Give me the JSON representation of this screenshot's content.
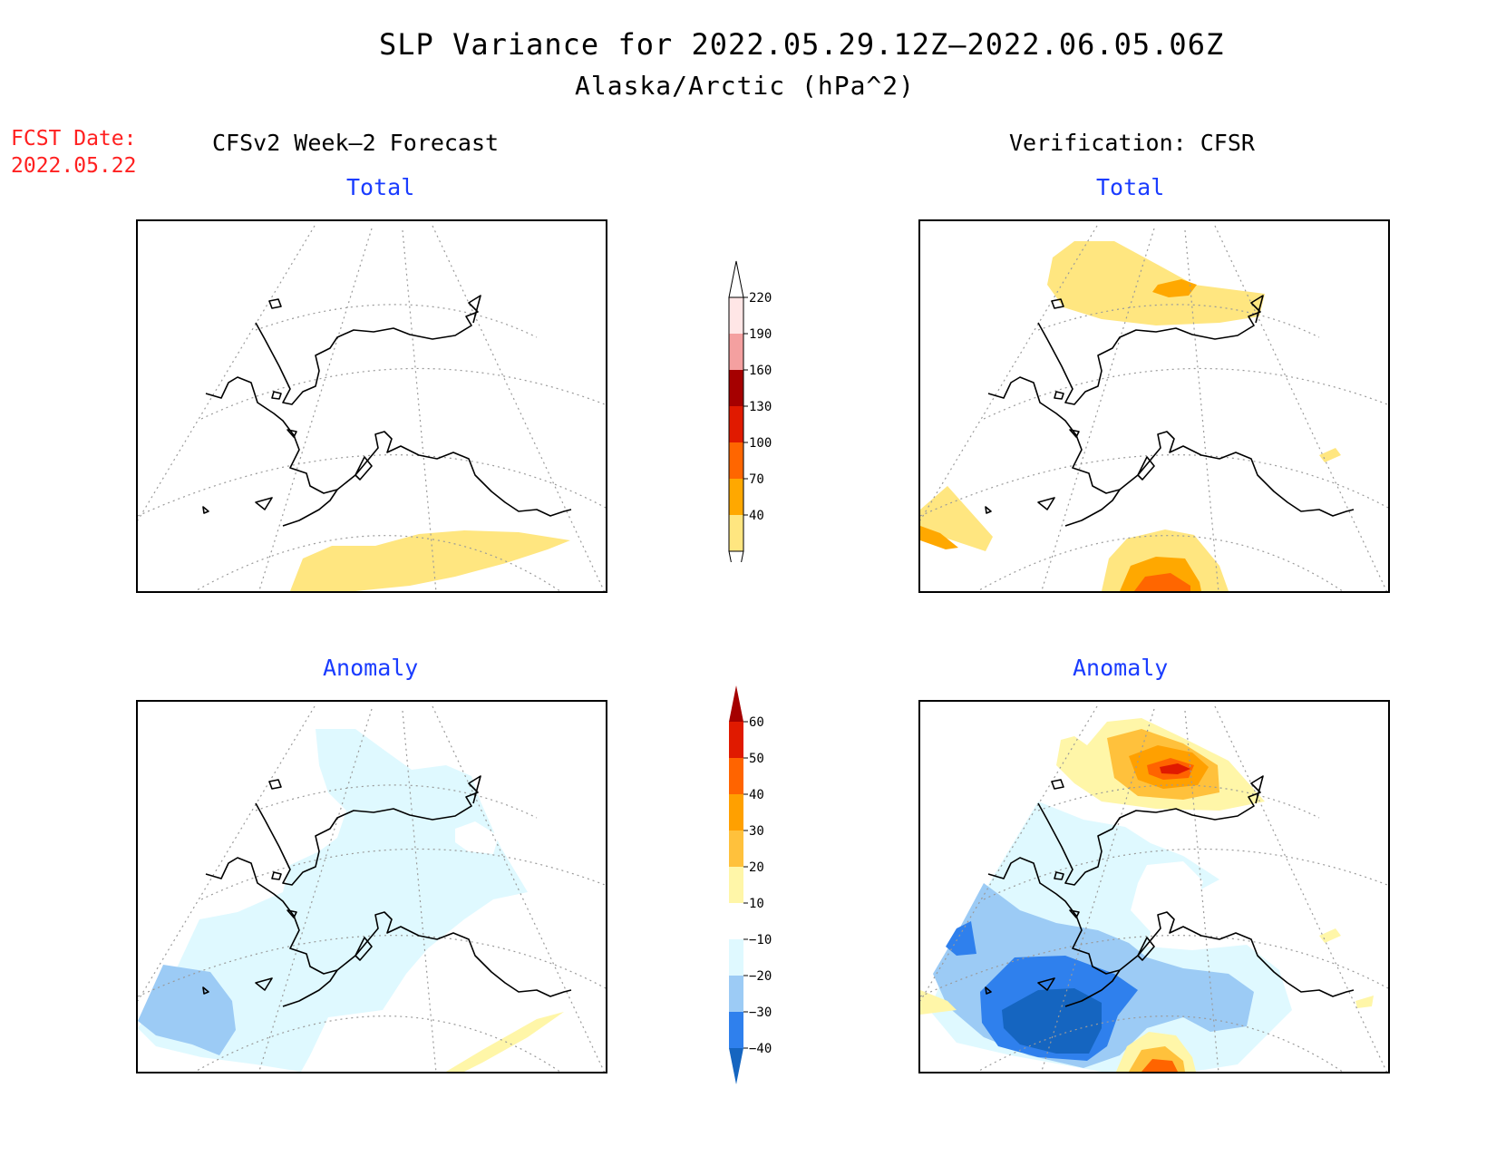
{
  "title": "SLP Variance for 2022.05.29.12Z–2022.06.05.06Z",
  "subtitle": "Alaska/Arctic (hPa^2)",
  "fcst_label": "FCST Date:",
  "fcst_date": "2022.05.22",
  "left_heading": "CFSv2 Week–2 Forecast",
  "right_heading": "Verification: CFSR",
  "panels": {
    "fcst_total": "Total",
    "verif_total": "Total",
    "fcst_anomaly": "Anomaly",
    "verif_anomaly": "Anomaly"
  },
  "colorbars": {
    "total": {
      "labels": [
        "40",
        "70",
        "100",
        "130",
        "160",
        "190",
        "220"
      ],
      "colors": [
        "#ffe680",
        "#ffa800",
        "#ff6600",
        "#e01a00",
        "#a50000",
        "#f4a0a0",
        "#ffe6e6"
      ]
    },
    "anomaly": {
      "labels": [
        "−40",
        "−30",
        "−20",
        "−10",
        "10",
        "20",
        "30",
        "40",
        "50",
        "60"
      ],
      "colors": [
        "#1565c0",
        "#2f80ed",
        "#9ccbf5",
        "#dff9ff",
        "#ffffff",
        "#fff6a8",
        "#ffc13c",
        "#ffa000",
        "#ff6400",
        "#e01a00",
        "#a50000"
      ]
    }
  }
}
